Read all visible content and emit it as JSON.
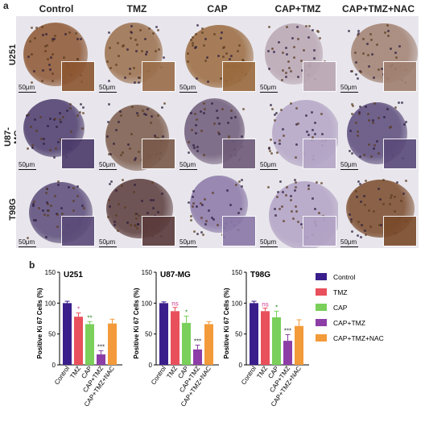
{
  "panel_a": {
    "letter": "a",
    "columns": [
      "Control",
      "TMZ",
      "CAP",
      "CAP+TMZ",
      "CAP+TMZ+NAC"
    ],
    "rows": [
      "U251",
      "U87-MG",
      "T98G"
    ],
    "scale_label": "50μm",
    "tile_colors": [
      [
        "#8c5530",
        "#9a6e4a",
        "#9a6a3e",
        "#b9a6b3",
        "#a08070"
      ],
      [
        "#4a3a6a",
        "#7a5a4a",
        "#6e5a78",
        "#b4a5c6",
        "#5a4a7a"
      ],
      [
        "#5a4a78",
        "#5a3a3a",
        "#8a78a8",
        "#b2a2c5",
        "#7a4a2a"
      ]
    ]
  },
  "panel_b": {
    "letter": "b"
  },
  "legend": {
    "items": [
      {
        "label": "Control",
        "color": "#3a1f8c"
      },
      {
        "label": "TMZ",
        "color": "#e8505b"
      },
      {
        "label": "CAP",
        "color": "#7ad05a"
      },
      {
        "label": "CAP+TMZ",
        "color": "#8c3ea6"
      },
      {
        "label": "CAP+TMZ+NAC",
        "color": "#f39a3a"
      }
    ]
  },
  "chart_data": [
    {
      "type": "bar",
      "title": "U251",
      "ylabel": "Positive Ki 67 Cells (%)",
      "categories": [
        "Control",
        "TMZ",
        "CAP",
        "CAP+TMZ",
        "CAP+TMZ+NAC"
      ],
      "values": [
        100,
        78,
        66,
        17,
        67
      ],
      "errors": [
        3,
        6,
        4,
        6,
        7
      ],
      "significance": [
        "",
        "*",
        "**",
        "***",
        ""
      ],
      "ylim": [
        0,
        150
      ],
      "yticks": [
        "0",
        "50",
        "100",
        "150"
      ]
    },
    {
      "type": "bar",
      "title": "U87-MG",
      "ylabel": "Positive Ki 67 Cells (%)",
      "categories": [
        "Control",
        "TMZ",
        "CAP",
        "CAP+TMZ",
        "CAP+TMZ+NAC"
      ],
      "values": [
        100,
        87,
        68,
        25,
        66
      ],
      "errors": [
        2,
        6,
        11,
        7,
        4
      ],
      "significance": [
        "",
        "ns",
        "*",
        "***",
        ""
      ],
      "ylim": [
        0,
        150
      ],
      "yticks": [
        "0",
        "50",
        "100",
        "150"
      ]
    },
    {
      "type": "bar",
      "title": "T98G",
      "ylabel": "Positive Ki 67 Cells (%)",
      "categories": [
        "Control",
        "TMZ",
        "CAP",
        "CAP+TMZ",
        "CAP+TMZ+NAC"
      ],
      "values": [
        100,
        87,
        77,
        39,
        63
      ],
      "errors": [
        3,
        5,
        10,
        10,
        10
      ],
      "significance": [
        "",
        "ns",
        "*",
        "***",
        ""
      ],
      "ylim": [
        0,
        150
      ],
      "yticks": [
        "0",
        "50",
        "100",
        "150"
      ]
    }
  ]
}
